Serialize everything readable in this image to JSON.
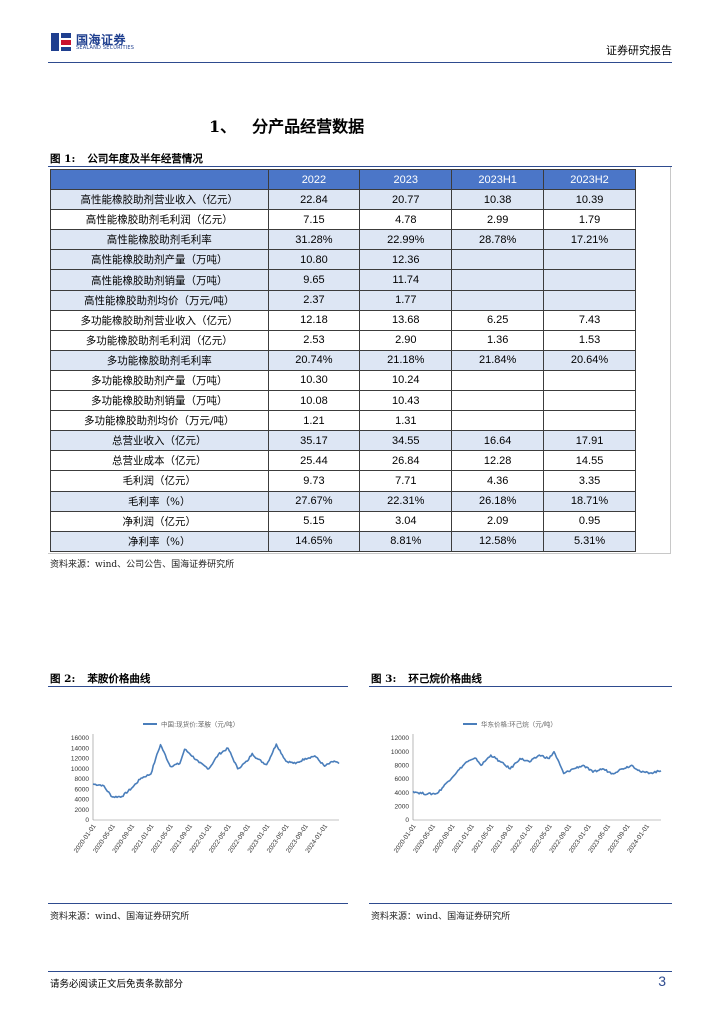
{
  "header": {
    "logo_cn": "国海证券",
    "logo_en": "SEALAND SECURITIES",
    "report_type": "证券研究报告"
  },
  "section": {
    "number": "1、",
    "title": "分产品经营数据"
  },
  "figure1": {
    "label": "图 1:",
    "title": "公司年度及半年经营情况",
    "columns": [
      "",
      "2022",
      "2023",
      "2023H1",
      "2023H2"
    ],
    "rows": [
      [
        "高性能橡胶助剂营业收入（亿元）",
        "22.84",
        "20.77",
        "10.38",
        "10.39"
      ],
      [
        "高性能橡胶助剂毛利润（亿元）",
        "7.15",
        "4.78",
        "2.99",
        "1.79"
      ],
      [
        "高性能橡胶助剂毛利率",
        "31.28%",
        "22.99%",
        "28.78%",
        "17.21%"
      ],
      [
        "高性能橡胶助剂产量（万吨）",
        "10.80",
        "12.36",
        "",
        ""
      ],
      [
        "高性能橡胶助剂销量（万吨）",
        "9.65",
        "11.74",
        "",
        ""
      ],
      [
        "高性能橡胶助剂均价（万元/吨）",
        "2.37",
        "1.77",
        "",
        ""
      ],
      [
        "多功能橡胶助剂营业收入（亿元）",
        "12.18",
        "13.68",
        "6.25",
        "7.43"
      ],
      [
        "多功能橡胶助剂毛利润（亿元）",
        "2.53",
        "2.90",
        "1.36",
        "1.53"
      ],
      [
        "多功能橡胶助剂毛利率",
        "20.74%",
        "21.18%",
        "21.84%",
        "20.64%"
      ],
      [
        "多功能橡胶助剂产量（万吨）",
        "10.30",
        "10.24",
        "",
        ""
      ],
      [
        "多功能橡胶助剂销量（万吨）",
        "10.08",
        "10.43",
        "",
        ""
      ],
      [
        "多功能橡胶助剂均价（万元/吨）",
        "1.21",
        "1.31",
        "",
        ""
      ],
      [
        "总营业收入（亿元）",
        "35.17",
        "34.55",
        "16.64",
        "17.91"
      ],
      [
        "总营业成本（亿元）",
        "25.44",
        "26.84",
        "12.28",
        "14.55"
      ],
      [
        "毛利润（亿元）",
        "9.73",
        "7.71",
        "4.36",
        "3.35"
      ],
      [
        "毛利率（%）",
        "27.67%",
        "22.31%",
        "26.18%",
        "18.71%"
      ],
      [
        "净利润（亿元）",
        "5.15",
        "3.04",
        "2.09",
        "0.95"
      ],
      [
        "净利率（%）",
        "14.65%",
        "8.81%",
        "12.58%",
        "5.31%"
      ]
    ],
    "source": "资料来源：wind、公司公告、国海证券研究所"
  },
  "figure2": {
    "label": "图 2:",
    "title": "苯胺价格曲线",
    "source": "资料来源：wind、国海证券研究所"
  },
  "figure3": {
    "label": "图 3:",
    "title": "环己烷价格曲线",
    "source": "资料来源：wind、国海证券研究所"
  },
  "chart_data": [
    {
      "type": "line",
      "title": "",
      "series": [
        {
          "name": "中国:现货价:苯胺（元/吨）",
          "x": [
            "2020-01",
            "2020-03",
            "2020-05",
            "2020-07",
            "2020-09",
            "2020-11",
            "2021-01",
            "2021-02",
            "2021-03",
            "2021-05",
            "2021-07",
            "2021-08",
            "2021-09",
            "2021-11",
            "2022-01",
            "2022-03",
            "2022-05",
            "2022-07",
            "2022-09",
            "2022-10",
            "2022-11",
            "2023-01",
            "2023-03",
            "2023-05",
            "2023-07",
            "2023-09",
            "2023-11",
            "2024-01",
            "2024-03",
            "2024-04"
          ],
          "values": [
            7000,
            6800,
            4500,
            4600,
            6200,
            8200,
            9000,
            12000,
            14700,
            10500,
            11000,
            13800,
            13000,
            11200,
            10000,
            12800,
            14000,
            10000,
            11500,
            13000,
            12000,
            10800,
            14800,
            11500,
            11000,
            12000,
            12500,
            10500,
            11500,
            11000
          ]
        }
      ],
      "x_ticks": [
        "2020-01-01",
        "2020-05-01",
        "2020-09-01",
        "2021-01-01",
        "2021-05-01",
        "2021-09-01",
        "2022-01-01",
        "2022-05-01",
        "2022-09-01",
        "2023-01-01",
        "2023-05-01",
        "2023-09-01",
        "2024-01-01"
      ],
      "y_ticks": [
        0,
        2000,
        4000,
        6000,
        8000,
        10000,
        12000,
        14000,
        16000
      ],
      "ylim": [
        0,
        16000
      ],
      "grid": false,
      "legend_position": "top"
    },
    {
      "type": "line",
      "title": "",
      "series": [
        {
          "name": "华东价格:环己烷（元/吨）",
          "x": [
            "2020-01",
            "2020-02",
            "2020-04",
            "2020-06",
            "2020-08",
            "2020-10",
            "2020-12",
            "2021-02",
            "2021-03",
            "2021-05",
            "2021-07",
            "2021-09",
            "2021-11",
            "2022-01",
            "2022-03",
            "2022-05",
            "2022-06",
            "2022-08",
            "2022-10",
            "2022-12",
            "2023-02",
            "2023-04",
            "2023-06",
            "2023-08",
            "2023-10",
            "2023-12",
            "2024-02",
            "2024-04"
          ],
          "values": [
            4200,
            4000,
            3800,
            3900,
            5500,
            7000,
            8500,
            9000,
            8000,
            9500,
            8500,
            7500,
            9000,
            8500,
            9500,
            9000,
            10000,
            6800,
            7500,
            8000,
            7000,
            7500,
            6800,
            7500,
            8000,
            7000,
            6900,
            7200
          ]
        }
      ],
      "x_ticks": [
        "2020-01-01",
        "2020-05-01",
        "2020-09-01",
        "2021-01-01",
        "2021-05-01",
        "2021-09-01",
        "2022-01-01",
        "2022-05-01",
        "2022-09-01",
        "2023-01-01",
        "2023-05-01",
        "2023-09-01",
        "2024-01-01"
      ],
      "y_ticks": [
        0,
        2000,
        4000,
        6000,
        8000,
        10000,
        12000
      ],
      "ylim": [
        0,
        12000
      ],
      "grid": false,
      "legend_position": "top"
    }
  ],
  "footer": {
    "disclaimer": "请务必阅读正文后免责条款部分",
    "page": "3"
  }
}
